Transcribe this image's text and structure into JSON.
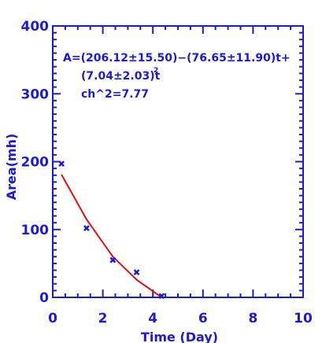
{
  "colors": {
    "axis": "#1a1adb",
    "points": "#1a1adb",
    "fit_line": "#e01010"
  },
  "chart_data": {
    "type": "scatter",
    "xlabel": "Time (Day)",
    "ylabel": "Area(mh)",
    "xlim": [
      0,
      10
    ],
    "ylim": [
      0,
      400
    ],
    "x_ticks": [
      0,
      2,
      4,
      6,
      8,
      10
    ],
    "y_ticks": [
      0,
      100,
      200,
      300,
      400
    ],
    "grid": false,
    "series": [
      {
        "marker": "x",
        "x": [
          0.35,
          1.35,
          2.4,
          3.35,
          4.35
        ],
        "y": [
          197,
          102,
          55,
          37,
          2
        ]
      },
      {
        "marker": "line",
        "x": [
          0.35,
          1.35,
          2.4,
          3.35,
          4.35
        ],
        "y": [
          181,
          115,
          60,
          26,
          0
        ]
      }
    ],
    "annotations": [
      "A=(206.12±15.50)−(76.65±11.90)t+",
      "(7.04±2.03)t",
      "2",
      "ch^2=7.77"
    ]
  }
}
